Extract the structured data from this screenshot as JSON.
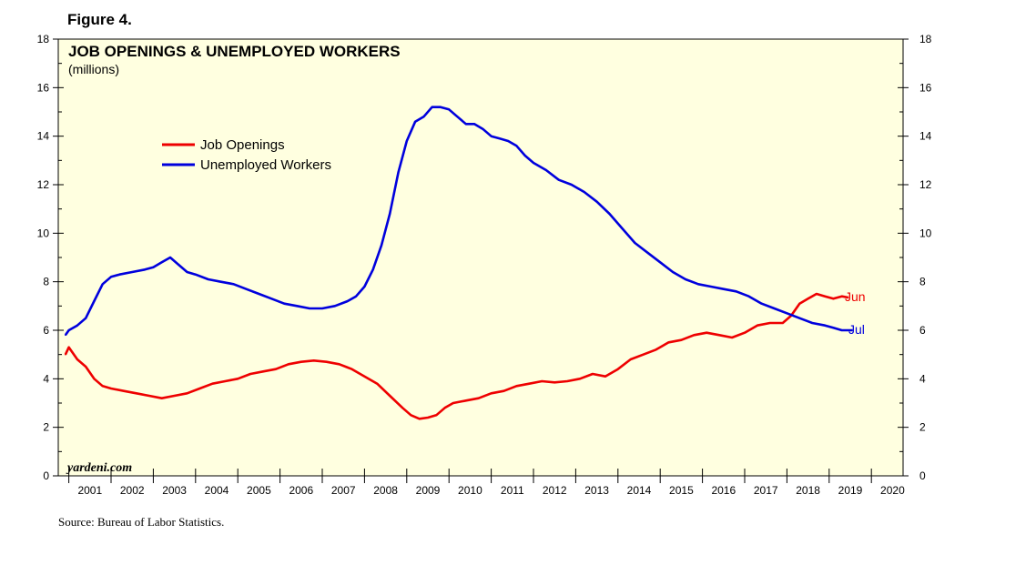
{
  "figure_label": "Figure 4.",
  "source": "Source: Bureau of Labor Statistics.",
  "watermark": "yardeni.com",
  "colors": {
    "background": "#ffffe0",
    "job_openings": "#ee0000",
    "unemployed": "#0000dd"
  },
  "chart_data": {
    "type": "line",
    "title": "JOB OPENINGS & UNEMPLOYED WORKERS",
    "subtitle": "(millions)",
    "xlim": [
      2000.75,
      2020.75
    ],
    "ylim": [
      0,
      18
    ],
    "y_ticks": [
      "0",
      "2",
      "4",
      "6",
      "8",
      "10",
      "12",
      "14",
      "16",
      "18"
    ],
    "x_ticks": [
      "2001",
      "2002",
      "2003",
      "2004",
      "2005",
      "2006",
      "2007",
      "2008",
      "2009",
      "2010",
      "2011",
      "2012",
      "2013",
      "2014",
      "2015",
      "2016",
      "2017",
      "2018",
      "2019",
      "2020"
    ],
    "series": [
      {
        "name": "Job Openings",
        "end_label": "Jun",
        "x": [
          2000.92,
          2001.0,
          2001.2,
          2001.4,
          2001.6,
          2001.8,
          2002.0,
          2002.3,
          2002.6,
          2002.9,
          2003.2,
          2003.5,
          2003.8,
          2004.1,
          2004.4,
          2004.7,
          2005.0,
          2005.3,
          2005.6,
          2005.9,
          2006.2,
          2006.5,
          2006.8,
          2007.1,
          2007.4,
          2007.7,
          2008.0,
          2008.3,
          2008.6,
          2008.9,
          2009.1,
          2009.3,
          2009.5,
          2009.7,
          2009.9,
          2010.1,
          2010.4,
          2010.7,
          2011.0,
          2011.3,
          2011.6,
          2011.9,
          2012.2,
          2012.5,
          2012.8,
          2013.1,
          2013.4,
          2013.7,
          2014.0,
          2014.3,
          2014.6,
          2014.9,
          2015.2,
          2015.5,
          2015.8,
          2016.1,
          2016.4,
          2016.7,
          2017.0,
          2017.3,
          2017.6,
          2017.9,
          2018.1,
          2018.3,
          2018.5,
          2018.7,
          2018.9,
          2019.1,
          2019.3,
          2019.45
        ],
        "values": [
          5.0,
          5.3,
          4.8,
          4.5,
          4.0,
          3.7,
          3.6,
          3.5,
          3.4,
          3.3,
          3.2,
          3.3,
          3.4,
          3.6,
          3.8,
          3.9,
          4.0,
          4.2,
          4.3,
          4.4,
          4.6,
          4.7,
          4.75,
          4.7,
          4.6,
          4.4,
          4.1,
          3.8,
          3.3,
          2.8,
          2.5,
          2.35,
          2.4,
          2.5,
          2.8,
          3.0,
          3.1,
          3.2,
          3.4,
          3.5,
          3.7,
          3.8,
          3.9,
          3.85,
          3.9,
          4.0,
          4.2,
          4.1,
          4.4,
          4.8,
          5.0,
          5.2,
          5.5,
          5.6,
          5.8,
          5.9,
          5.8,
          5.7,
          5.9,
          6.2,
          6.3,
          6.3,
          6.6,
          7.1,
          7.3,
          7.5,
          7.4,
          7.3,
          7.4,
          7.35
        ]
      },
      {
        "name": "Unemployed Workers",
        "end_label": "Jul",
        "x": [
          2000.92,
          2001.0,
          2001.2,
          2001.4,
          2001.6,
          2001.8,
          2002.0,
          2002.2,
          2002.5,
          2002.8,
          2003.0,
          2003.2,
          2003.4,
          2003.6,
          2003.8,
          2004.0,
          2004.3,
          2004.6,
          2004.9,
          2005.2,
          2005.5,
          2005.8,
          2006.1,
          2006.4,
          2006.7,
          2007.0,
          2007.3,
          2007.6,
          2007.8,
          2008.0,
          2008.2,
          2008.4,
          2008.6,
          2008.8,
          2009.0,
          2009.2,
          2009.4,
          2009.6,
          2009.8,
          2010.0,
          2010.2,
          2010.4,
          2010.6,
          2010.8,
          2011.0,
          2011.2,
          2011.4,
          2011.6,
          2011.8,
          2012.0,
          2012.3,
          2012.6,
          2012.9,
          2013.2,
          2013.5,
          2013.8,
          2014.1,
          2014.4,
          2014.7,
          2015.0,
          2015.3,
          2015.6,
          2015.9,
          2016.2,
          2016.5,
          2016.8,
          2017.1,
          2017.4,
          2017.7,
          2018.0,
          2018.3,
          2018.6,
          2018.9,
          2019.1,
          2019.3,
          2019.55
        ],
        "values": [
          5.8,
          6.0,
          6.2,
          6.5,
          7.2,
          7.9,
          8.2,
          8.3,
          8.4,
          8.5,
          8.6,
          8.8,
          9.0,
          8.7,
          8.4,
          8.3,
          8.1,
          8.0,
          7.9,
          7.7,
          7.5,
          7.3,
          7.1,
          7.0,
          6.9,
          6.9,
          7.0,
          7.2,
          7.4,
          7.8,
          8.5,
          9.5,
          10.8,
          12.5,
          13.8,
          14.6,
          14.8,
          15.2,
          15.2,
          15.1,
          14.8,
          14.5,
          14.5,
          14.3,
          14.0,
          13.9,
          13.8,
          13.6,
          13.2,
          12.9,
          12.6,
          12.2,
          12.0,
          11.7,
          11.3,
          10.8,
          10.2,
          9.6,
          9.2,
          8.8,
          8.4,
          8.1,
          7.9,
          7.8,
          7.7,
          7.6,
          7.4,
          7.1,
          6.9,
          6.7,
          6.5,
          6.3,
          6.2,
          6.1,
          6.0,
          6.0
        ]
      }
    ]
  }
}
